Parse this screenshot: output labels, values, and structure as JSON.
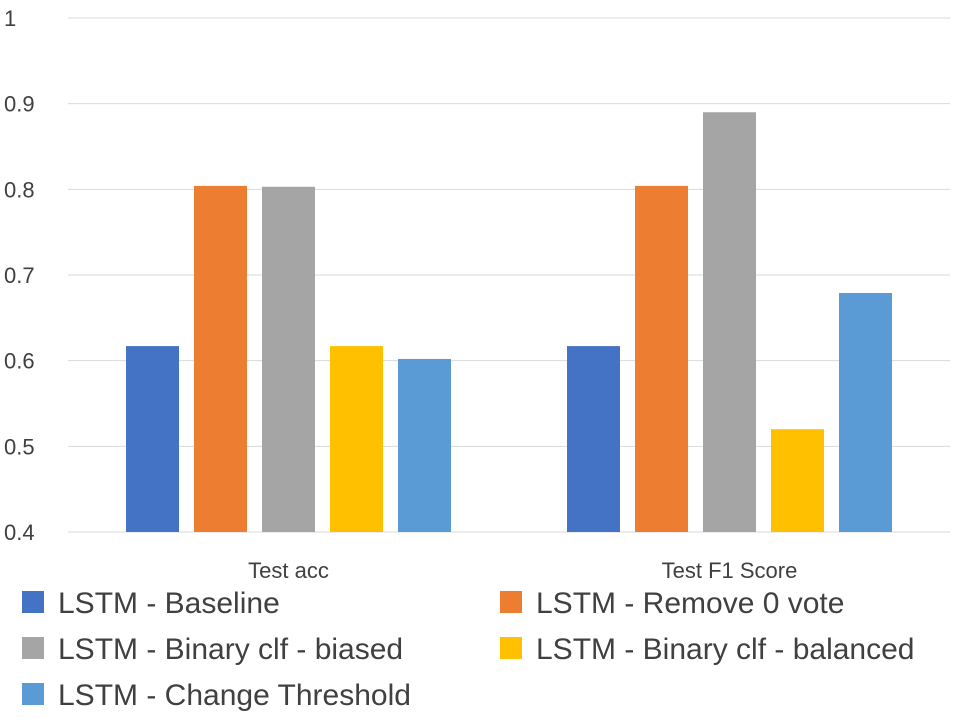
{
  "chart_data": {
    "type": "bar",
    "categories": [
      "Test acc",
      "Test F1 Score"
    ],
    "series": [
      {
        "name": "LSTM - Baseline",
        "values": [
          0.617,
          0.617
        ],
        "color": "#4472C4"
      },
      {
        "name": "LSTM - Remove 0 vote",
        "values": [
          0.804,
          0.804
        ],
        "color": "#ED7D31"
      },
      {
        "name": "LSTM - Binary clf - biased",
        "values": [
          0.803,
          0.89
        ],
        "color": "#A5A5A5"
      },
      {
        "name": "LSTM - Binary clf - balanced",
        "values": [
          0.617,
          0.52
        ],
        "color": "#FFC000"
      },
      {
        "name": "LSTM - Change Threshold",
        "values": [
          0.602,
          0.679
        ],
        "color": "#5B9BD5"
      }
    ],
    "ylim": [
      0.4,
      1.0
    ],
    "yticks": [
      "0.4",
      "0.5",
      "0.6",
      "0.7",
      "0.8",
      "0.9",
      "1"
    ],
    "grid": true,
    "legend": "bottom",
    "title": "",
    "xlabel": "",
    "ylabel": ""
  }
}
